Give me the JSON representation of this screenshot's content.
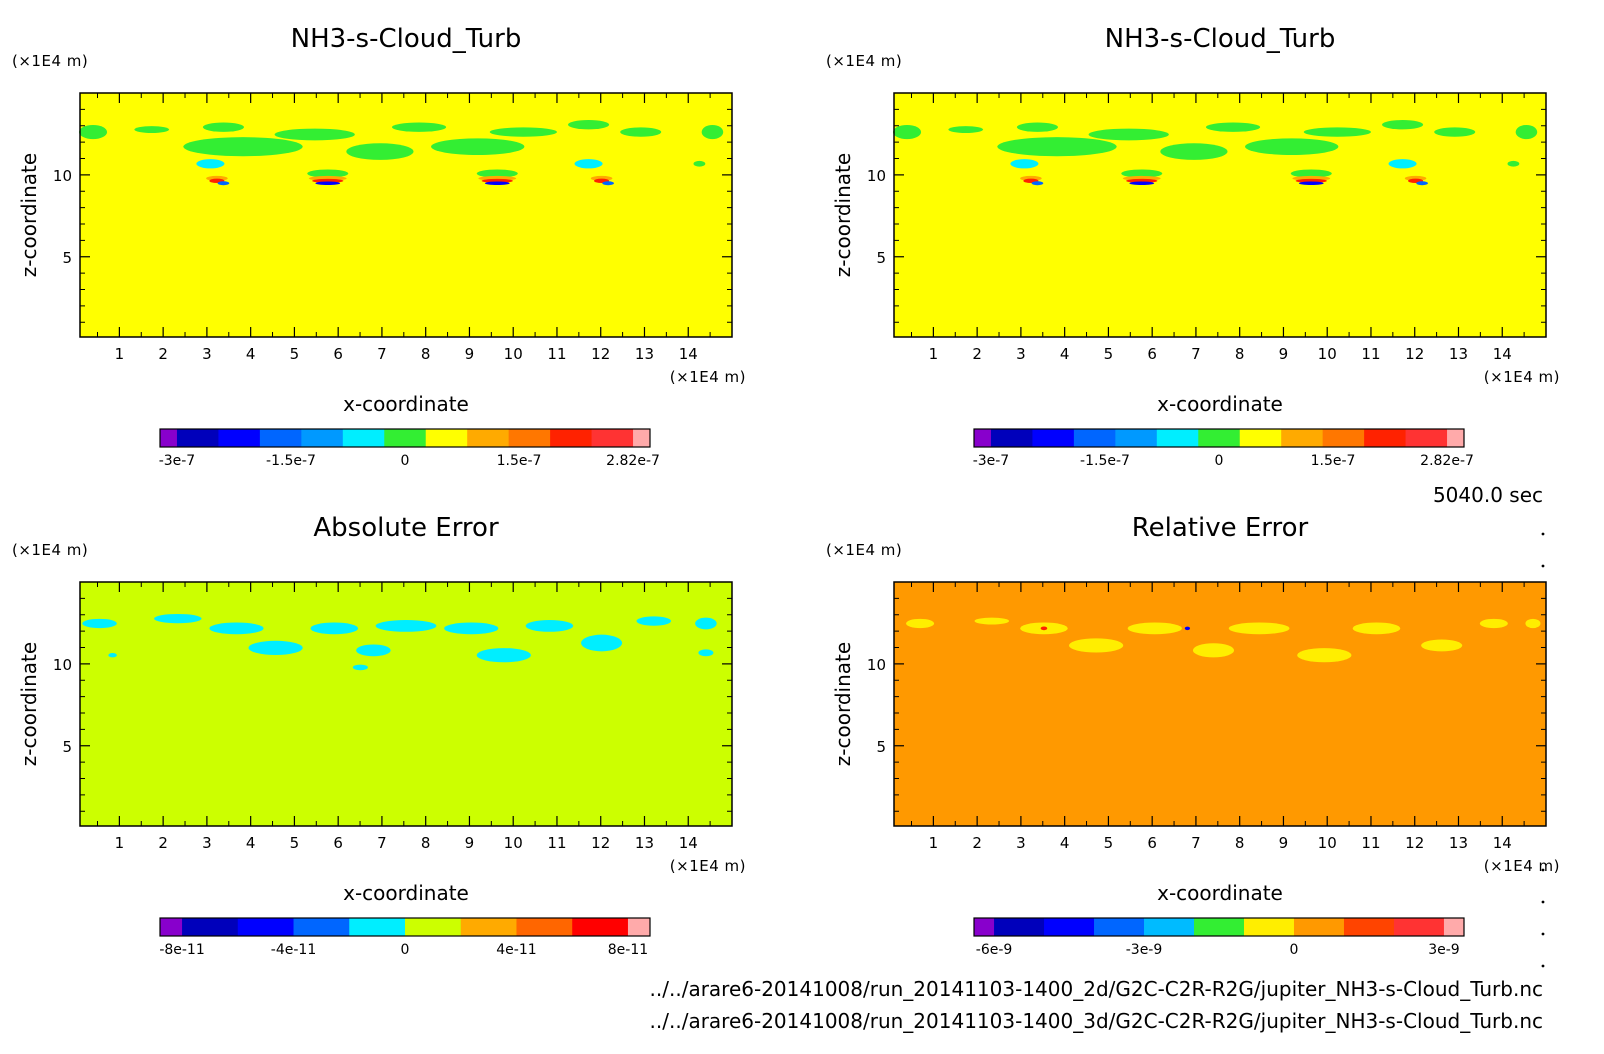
{
  "time_label": "5040.0 sec",
  "footer": {
    "file_2d": "../../arare6-20141008/run_20141103-1400_2d/G2C-C2R-R2G/jupiter_NH3-s-Cloud_Turb.nc",
    "file_3d": "../../arare6-20141008/run_20141103-1400_3d/G2C-C2R-R2G/jupiter_NH3-s-Cloud_Turb.nc"
  },
  "chart_data": [
    {
      "type": "heatmap",
      "title": "NH3-s-Cloud_Turb",
      "xlabel": "x-coordinate",
      "ylabel": "z-coordinate",
      "x_unit": "(×1E4 m)",
      "y_unit": "(×1E4 m)",
      "xlim": [
        0.1,
        15.0
      ],
      "ylim": [
        0.1,
        15.0
      ],
      "x_ticks": [
        "1",
        "2",
        "3",
        "4",
        "5",
        "6",
        "7",
        "8",
        "9",
        "10",
        "11",
        "12",
        "13",
        "14"
      ],
      "y_ticks": [
        "5",
        "10"
      ],
      "background_color": "#ffff00",
      "colorbar": {
        "colors": [
          "#8800cc",
          "#0000bb",
          "#0000ff",
          "#0066ff",
          "#0099ff",
          "#00eeff",
          "#33ee33",
          "#ffff00",
          "#ffaa00",
          "#ff7700",
          "#ff2200",
          "#ff3333",
          "#ffaaaa"
        ],
        "labels": [
          "-3e-7",
          "-1.5e-7",
          "0",
          "1.5e-7",
          "2.82e-7"
        ]
      }
    },
    {
      "type": "heatmap",
      "title": "NH3-s-Cloud_Turb",
      "xlabel": "x-coordinate",
      "ylabel": "z-coordinate",
      "x_unit": "(×1E4 m)",
      "y_unit": "(×1E4 m)",
      "xlim": [
        0.1,
        15.0
      ],
      "ylim": [
        0.1,
        15.0
      ],
      "x_ticks": [
        "1",
        "2",
        "3",
        "4",
        "5",
        "6",
        "7",
        "8",
        "9",
        "10",
        "11",
        "12",
        "13",
        "14"
      ],
      "y_ticks": [
        "5",
        "10"
      ],
      "background_color": "#ffff00",
      "colorbar": {
        "colors": [
          "#8800cc",
          "#0000bb",
          "#0000ff",
          "#0066ff",
          "#0099ff",
          "#00eeff",
          "#33ee33",
          "#ffff00",
          "#ffaa00",
          "#ff7700",
          "#ff2200",
          "#ff3333",
          "#ffaaaa"
        ],
        "labels": [
          "-3e-7",
          "-1.5e-7",
          "0",
          "1.5e-7",
          "2.82e-7"
        ]
      }
    },
    {
      "type": "heatmap",
      "title": "Absolute Error",
      "xlabel": "x-coordinate",
      "ylabel": "z-coordinate",
      "x_unit": "(×1E4 m)",
      "y_unit": "(×1E4 m)",
      "xlim": [
        0.1,
        15.0
      ],
      "ylim": [
        0.1,
        15.0
      ],
      "x_ticks": [
        "1",
        "2",
        "3",
        "4",
        "5",
        "6",
        "7",
        "8",
        "9",
        "10",
        "11",
        "12",
        "13",
        "14"
      ],
      "y_ticks": [
        "5",
        "10"
      ],
      "background_color": "#ccff00",
      "colorbar": {
        "colors": [
          "#8800cc",
          "#0000bb",
          "#0000ff",
          "#0066ff",
          "#00eeff",
          "#ccff00",
          "#ffaa00",
          "#ff6600",
          "#ff0000",
          "#ffaaaa"
        ],
        "labels": [
          "-8e-11",
          "-4e-11",
          "0",
          "4e-11",
          "8e-11"
        ]
      }
    },
    {
      "type": "heatmap",
      "title": "Relative Error",
      "xlabel": "x-coordinate",
      "ylabel": "z-coordinate",
      "x_unit": "(×1E4 m)",
      "y_unit": "(×1E4 m)",
      "xlim": [
        0.1,
        15.0
      ],
      "ylim": [
        0.1,
        15.0
      ],
      "x_ticks": [
        "1",
        "2",
        "3",
        "4",
        "5",
        "6",
        "7",
        "8",
        "9",
        "10",
        "11",
        "12",
        "13",
        "14"
      ],
      "y_ticks": [
        "5",
        "10"
      ],
      "background_color": "#ff9900",
      "colorbar": {
        "colors": [
          "#8800cc",
          "#0000bb",
          "#0000ff",
          "#0066ff",
          "#00bbff",
          "#33ee33",
          "#ffee00",
          "#ff9900",
          "#ff4400",
          "#ff3333",
          "#ffaaaa"
        ],
        "labels": [
          "-6e-9",
          "-3e-9",
          "0",
          "3e-9"
        ]
      }
    }
  ]
}
